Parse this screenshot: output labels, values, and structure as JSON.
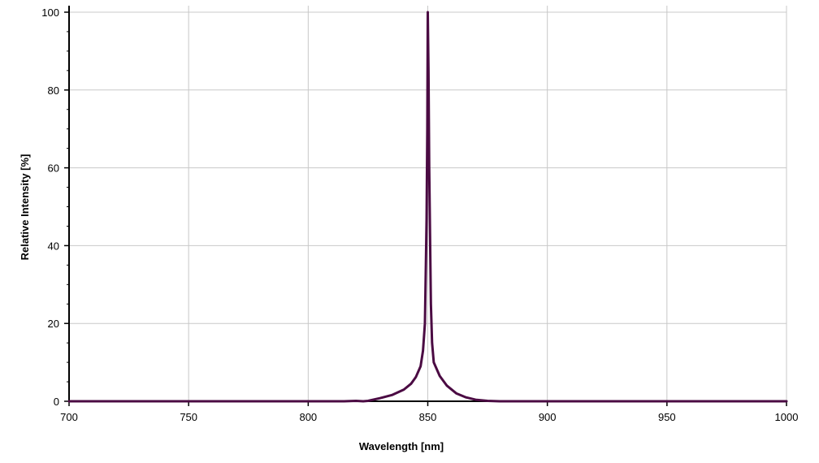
{
  "chart_data": {
    "type": "line",
    "title": "",
    "xlabel": "Wavelength [nm]",
    "ylabel": "Relative Intensity [%]",
    "xlim": [
      700,
      1000
    ],
    "ylim": [
      0,
      100
    ],
    "x_ticks": [
      700,
      750,
      800,
      850,
      900,
      950,
      1000
    ],
    "y_ticks": [
      0,
      20,
      40,
      60,
      80,
      100
    ],
    "x_tick_labels": [
      "700",
      "750",
      "800",
      "850",
      "900",
      "950",
      "1000"
    ],
    "y_tick_labels": [
      "0",
      "20",
      "40",
      "60",
      "80",
      "100"
    ],
    "grid": true,
    "legend": "none",
    "series": [
      {
        "color": "#4b0b43",
        "points": [
          [
            700,
            0
          ],
          [
            800,
            0
          ],
          [
            815,
            0
          ],
          [
            820,
            0.1
          ],
          [
            823,
            0
          ],
          [
            825,
            0.1
          ],
          [
            830,
            0.8
          ],
          [
            835,
            1.6
          ],
          [
            840,
            3.0
          ],
          [
            843,
            4.5
          ],
          [
            845,
            6.2
          ],
          [
            847,
            9.0
          ],
          [
            848,
            13.0
          ],
          [
            848.8,
            20.0
          ],
          [
            849.2,
            35.0
          ],
          [
            849.5,
            47.0
          ],
          [
            849.8,
            70.0
          ],
          [
            850,
            100
          ],
          [
            850.3,
            85.0
          ],
          [
            850.6,
            60.0
          ],
          [
            851,
            40.0
          ],
          [
            851.3,
            25.0
          ],
          [
            851.8,
            15.0
          ],
          [
            852.5,
            10.0
          ],
          [
            855,
            6.5
          ],
          [
            858,
            4.0
          ],
          [
            862,
            2.0
          ],
          [
            866,
            1.0
          ],
          [
            870,
            0.4
          ],
          [
            875,
            0.1
          ],
          [
            880,
            0
          ],
          [
            900,
            0
          ],
          [
            920,
            0
          ],
          [
            1000,
            0
          ]
        ]
      }
    ]
  }
}
